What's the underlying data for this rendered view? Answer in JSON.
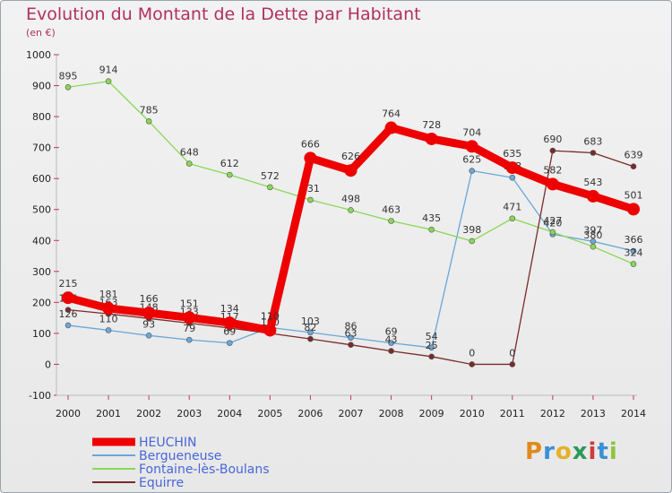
{
  "title": "Evolution du Montant de la Dette par Habitant",
  "subtitle": "(en €)",
  "logo_text": "Proxiti",
  "chart_data": {
    "type": "line",
    "title": "Evolution du Montant de la Dette par Habitant",
    "ylabel": "(en €)",
    "xlabel": "",
    "ylim": [
      -100,
      1000
    ],
    "yticks": [
      -100,
      0,
      100,
      200,
      300,
      400,
      500,
      600,
      700,
      800,
      900,
      1000
    ],
    "x": [
      "2000",
      "2001",
      "2002",
      "2003",
      "2004",
      "2005",
      "2006",
      "2007",
      "2008",
      "2009",
      "2010",
      "2011",
      "2012",
      "2013",
      "2014"
    ],
    "grid": false,
    "legend": "bottom-left",
    "series": [
      {
        "name": "HEUCHIN",
        "color": "#ee0000",
        "values": [
          215,
          181,
          166,
          151,
          134,
          110,
          666,
          626,
          764,
          728,
          704,
          635,
          582,
          543,
          501
        ]
      },
      {
        "name": "Bergueneuse",
        "color": "#6aa7d8",
        "values": [
          126,
          110,
          93,
          79,
          69,
          119,
          103,
          86,
          69,
          54,
          625,
          603,
          420,
          397,
          366
        ]
      },
      {
        "name": "Fontaine-lès-Boulans",
        "color": "#88d855",
        "values": [
          895,
          914,
          785,
          648,
          612,
          572,
          531,
          498,
          463,
          435,
          398,
          471,
          427,
          380,
          324
        ]
      },
      {
        "name": "Equirre",
        "color": "#7a2a2a",
        "values": [
          176,
          163,
          148,
          133,
          117,
          100,
          82,
          63,
          43,
          25,
          0,
          0,
          690,
          683,
          639
        ]
      }
    ]
  }
}
